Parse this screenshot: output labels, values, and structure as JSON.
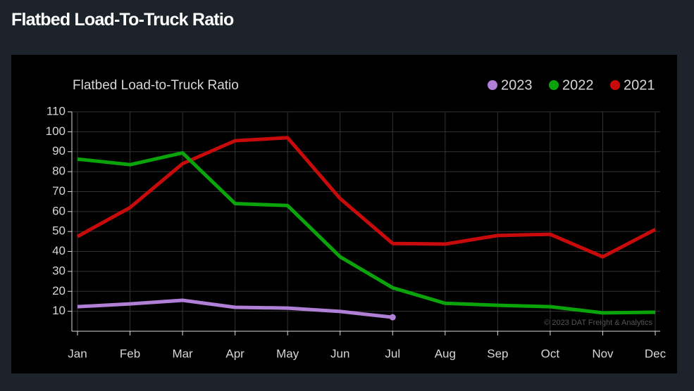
{
  "page_title": "Flatbed Load-To-Truck Ratio",
  "chart_data": {
    "type": "line",
    "title": "Flatbed Load-to-Truck Ratio",
    "watermark": "© 2023 DAT Freight & Analytics",
    "categories": [
      "Jan",
      "Feb",
      "Mar",
      "Apr",
      "May",
      "Jun",
      "Jul",
      "Aug",
      "Sep",
      "Oct",
      "Nov",
      "Dec"
    ],
    "series": [
      {
        "name": "2023",
        "color": "#b07fd6",
        "values": [
          12.3,
          13.7,
          15.5,
          12,
          11.6,
          9.9,
          7,
          null,
          null,
          null,
          null,
          null
        ]
      },
      {
        "name": "2022",
        "color": "#0aa30a",
        "values": [
          86.3,
          83.5,
          89.4,
          64,
          63,
          37.3,
          21.8,
          14,
          13,
          12.3,
          9.2,
          9.5
        ]
      },
      {
        "name": "2021",
        "color": "#c80a0a",
        "values": [
          47.5,
          62,
          84,
          95.5,
          97,
          66.5,
          44,
          43.7,
          48,
          48.6,
          37.3,
          51
        ]
      }
    ],
    "ylim": [
      0,
      110
    ],
    "yticks": [
      10,
      20,
      30,
      40,
      50,
      60,
      70,
      80,
      90,
      100,
      110
    ],
    "grid": true,
    "legend": "top-right"
  }
}
